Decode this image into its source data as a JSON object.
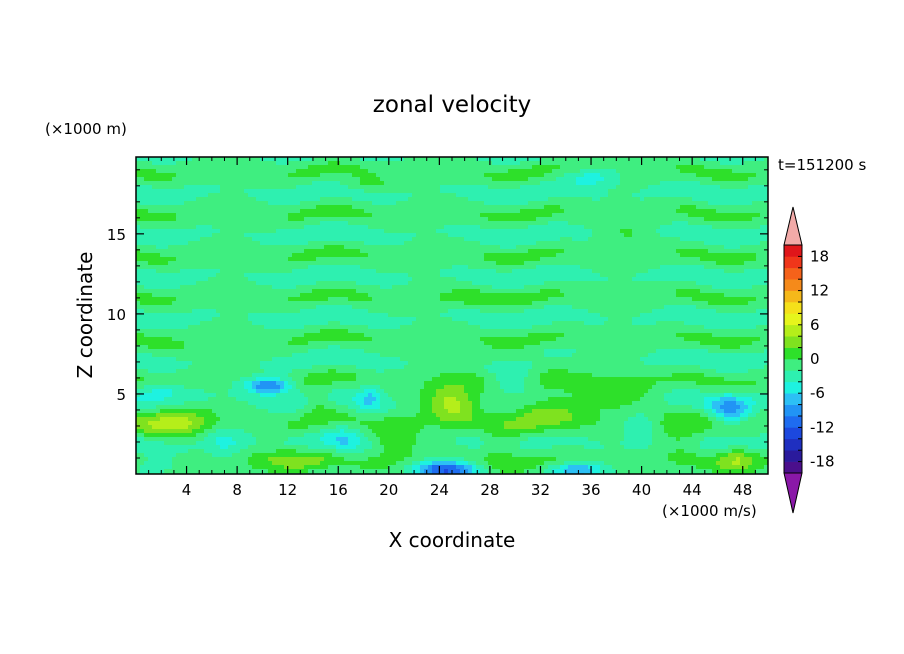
{
  "chart_data": {
    "type": "heatmap",
    "title": "zonal velocity",
    "xlabel": "X coordinate",
    "ylabel": "Z coordinate",
    "x_unit": "(×1000 m/s)",
    "y_unit": "(×1000 m)",
    "time_label": "t=151200 s",
    "xlim": [
      0,
      50
    ],
    "ylim": [
      0,
      19.8
    ],
    "x_ticks": [
      4,
      8,
      12,
      16,
      20,
      24,
      28,
      32,
      36,
      40,
      44,
      48
    ],
    "y_ticks": [
      5,
      10,
      15
    ],
    "colorbar": {
      "levels": [
        -20,
        -18,
        -16,
        -14,
        -12,
        -10,
        -8,
        -6,
        -4,
        -2,
        0,
        2,
        4,
        6,
        8,
        10,
        12,
        14,
        16,
        18,
        20
      ],
      "tick_labels": [
        18,
        12,
        6,
        0,
        -6,
        -12,
        -18
      ],
      "colors": [
        "#4b0f8c",
        "#2a1a9c",
        "#1f2fc0",
        "#1c48de",
        "#1e6cf0",
        "#2194f5",
        "#2cc0f5",
        "#1ef2e0",
        "#2ef0b0",
        "#3fee80",
        "#2ee02a",
        "#7fe21f",
        "#b5ee1a",
        "#e6f51c",
        "#f5e01a",
        "#f5b81a",
        "#f58a1a",
        "#f5621a",
        "#f0361a",
        "#e0161a"
      ],
      "under_color": "#8a18a8",
      "over_color": "#f2aaa8"
    },
    "background_value": -1.5,
    "features": [
      {
        "x": 25,
        "z": 4.5,
        "sx": 2.2,
        "sz": 1.3,
        "u": 6.5
      },
      {
        "x": 32,
        "z": 4.2,
        "sx": 3.5,
        "sz": 1.6,
        "u": 4.0
      },
      {
        "x": 38,
        "z": 5.0,
        "sx": 3.0,
        "sz": 1.2,
        "u": 3.0
      },
      {
        "x": 43,
        "z": 2.5,
        "sx": 2.0,
        "sz": 1.0,
        "u": 3.5
      },
      {
        "x": 20.5,
        "z": 2.0,
        "sx": 2.0,
        "sz": 1.4,
        "u": 3.5
      },
      {
        "x": 3,
        "z": 3.2,
        "sx": 3.0,
        "sz": 1.0,
        "u": 5.5
      },
      {
        "x": 12,
        "z": 1.0,
        "sx": 3.0,
        "sz": 0.7,
        "u": 4.0
      },
      {
        "x": 47.5,
        "z": 1.0,
        "sx": 1.5,
        "sz": 0.7,
        "u": 5.0
      },
      {
        "x": 29,
        "z": 1.5,
        "sx": 1.5,
        "sz": 1.0,
        "u": 3.0
      },
      {
        "x": 14.5,
        "z": 4.5,
        "sx": 1.2,
        "sz": 1.0,
        "u": 2.5
      },
      {
        "x": 10.5,
        "z": 5.5,
        "sx": 1.8,
        "sz": 0.5,
        "u": -9.5
      },
      {
        "x": 30,
        "z": 5.6,
        "sx": 2.0,
        "sz": 0.8,
        "u": -5.0
      },
      {
        "x": 24.5,
        "z": 0.3,
        "sx": 2.5,
        "sz": 0.5,
        "u": -11.0
      },
      {
        "x": 35,
        "z": 0.3,
        "sx": 2.0,
        "sz": 0.4,
        "u": -7.0
      },
      {
        "x": 47,
        "z": 4.0,
        "sx": 1.5,
        "sz": 1.0,
        "u": -6.0
      },
      {
        "x": 2,
        "z": 5.2,
        "sx": 2.0,
        "sz": 0.6,
        "u": -4.0
      },
      {
        "x": 7,
        "z": 2.0,
        "sx": 1.5,
        "sz": 1.0,
        "u": -3.0
      },
      {
        "x": 1.5,
        "z": 0.5,
        "sx": 2.0,
        "sz": 0.5,
        "u": -3.5
      },
      {
        "x": 18.5,
        "z": 4.8,
        "sx": 1.0,
        "sz": 1.0,
        "u": -4.0
      },
      {
        "x": 16.5,
        "z": 2.0,
        "sx": 1.5,
        "sz": 1.0,
        "u": -3.0
      },
      {
        "x": 40,
        "z": 3.0,
        "sx": 1.5,
        "sz": 0.8,
        "u": -3.0
      },
      {
        "x": 36,
        "z": 18.5,
        "sx": 2.0,
        "sz": 0.5,
        "u": -4.0
      },
      {
        "x": 6,
        "z": 7.5,
        "sx": 4.0,
        "sz": 0.5,
        "u": 2.0
      },
      {
        "x": 30,
        "z": 7.2,
        "sx": 5.0,
        "sz": 0.5,
        "u": 2.0
      },
      {
        "x": 18,
        "z": 18.0,
        "sx": 2.0,
        "sz": 0.4,
        "u": 2.2
      },
      {
        "x": 39,
        "z": 15.0,
        "sx": 2.0,
        "sz": 0.6,
        "u": 2.0
      },
      {
        "x": 26,
        "z": 11.0,
        "sx": 3.0,
        "sz": 0.5,
        "u": 1.8
      }
    ],
    "background_bands": {
      "amplitude": 2.2,
      "wavelength_z": 2.6,
      "wavelength_x": 9.0
    }
  }
}
